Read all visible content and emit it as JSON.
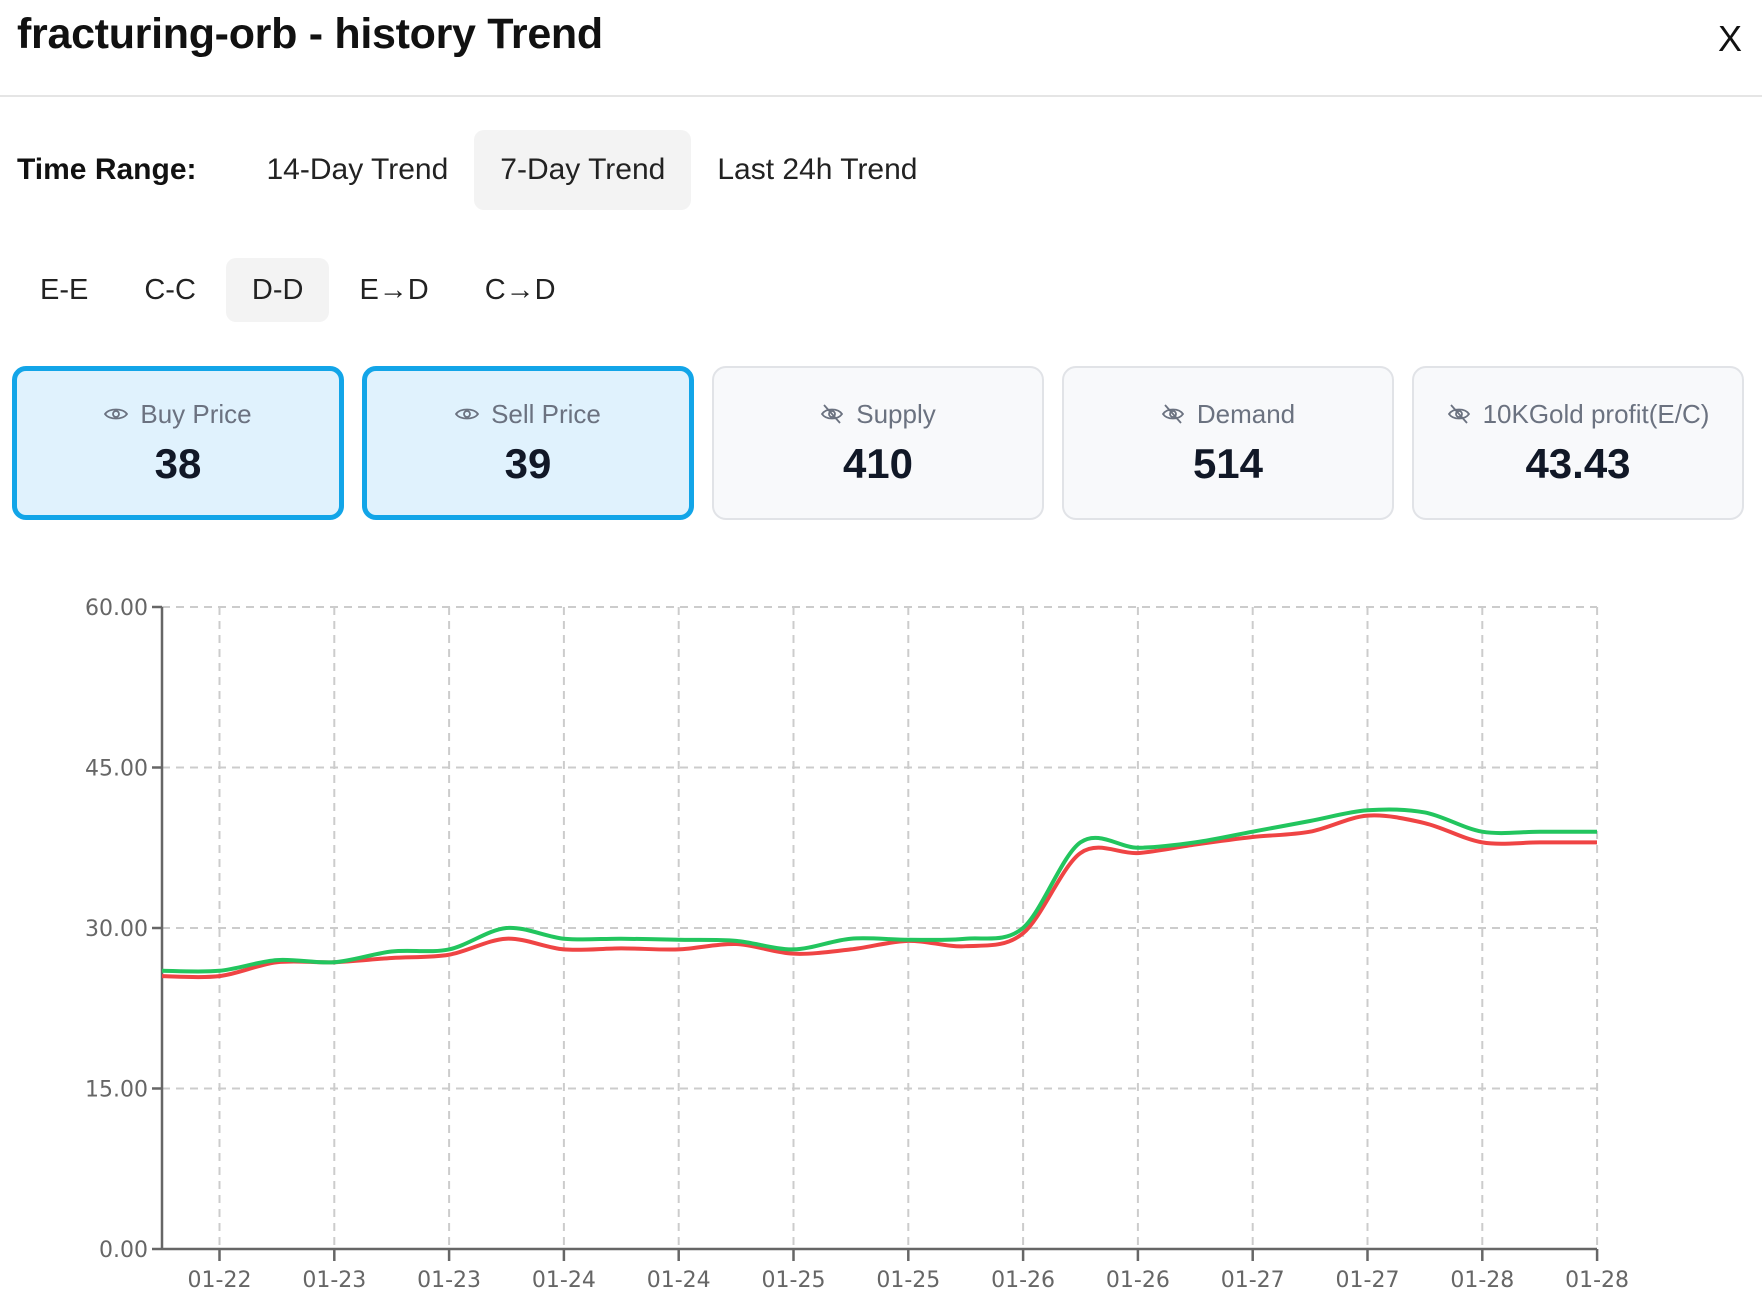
{
  "header": {
    "title": "fracturing-orb - history Trend",
    "close_label": "X"
  },
  "time_range": {
    "label": "Time Range:",
    "options": [
      "14-Day Trend",
      "7-Day Trend",
      "Last 24h Trend"
    ],
    "selected": "7-Day Trend"
  },
  "modes": {
    "options": [
      "E-E",
      "C-C",
      "D-D",
      "E→D",
      "C→D"
    ],
    "selected": "D-D"
  },
  "cards": [
    {
      "label": "Buy Price",
      "value": "38",
      "icon": "eye-icon",
      "active": true
    },
    {
      "label": "Sell Price",
      "value": "39",
      "icon": "eye-icon",
      "active": true
    },
    {
      "label": "Supply",
      "value": "410",
      "icon": "eye-off-icon",
      "active": false
    },
    {
      "label": "Demand",
      "value": "514",
      "icon": "eye-off-icon",
      "active": false
    },
    {
      "label": "10KGold profit(E/C)",
      "value": "43.43",
      "icon": "eye-off-icon",
      "active": false
    }
  ],
  "colors": {
    "accent": "#12a5e8",
    "buy_line": "#ef4444",
    "sell_line": "#22c55e"
  },
  "chart_data": {
    "type": "line",
    "title": "",
    "xlabel": "",
    "ylabel": "",
    "ylim": [
      0,
      60
    ],
    "yticks": [
      "0.00",
      "15.00",
      "30.00",
      "45.00",
      "60.00"
    ],
    "xticks": [
      "01-22",
      "01-23",
      "01-23",
      "01-24",
      "01-24",
      "01-25",
      "01-25",
      "01-26",
      "01-26",
      "01-27",
      "01-27",
      "01-28",
      "01-28"
    ],
    "grid": true,
    "legend": "none",
    "x": [
      0,
      0.5,
      1,
      1.5,
      2,
      2.5,
      3,
      3.5,
      4,
      4.5,
      5,
      5.5,
      6,
      6.5,
      7,
      7.5,
      8,
      8.5,
      9,
      9.5,
      10,
      10.5,
      11,
      11.5,
      12,
      12.5
    ],
    "series": [
      {
        "name": "Buy Price",
        "color": "#ef4444",
        "values": [
          25.5,
          25.5,
          26.8,
          26.8,
          27.2,
          27.5,
          29.0,
          28.0,
          28.1,
          28.0,
          28.5,
          27.6,
          28.0,
          28.8,
          28.3,
          29.5,
          37.0,
          37.0,
          37.8,
          38.5,
          39.0,
          40.5,
          39.8,
          38.0,
          38.0,
          38.0
        ]
      },
      {
        "name": "Sell Price",
        "color": "#22c55e",
        "values": [
          26.0,
          26.0,
          27.0,
          26.8,
          27.8,
          28.0,
          30.0,
          29.0,
          29.0,
          28.9,
          28.8,
          28.0,
          29.0,
          28.9,
          29.0,
          30.0,
          38.0,
          37.5,
          38.0,
          39.0,
          40.0,
          41.0,
          40.8,
          39.0,
          39.0,
          39.0
        ]
      }
    ]
  }
}
